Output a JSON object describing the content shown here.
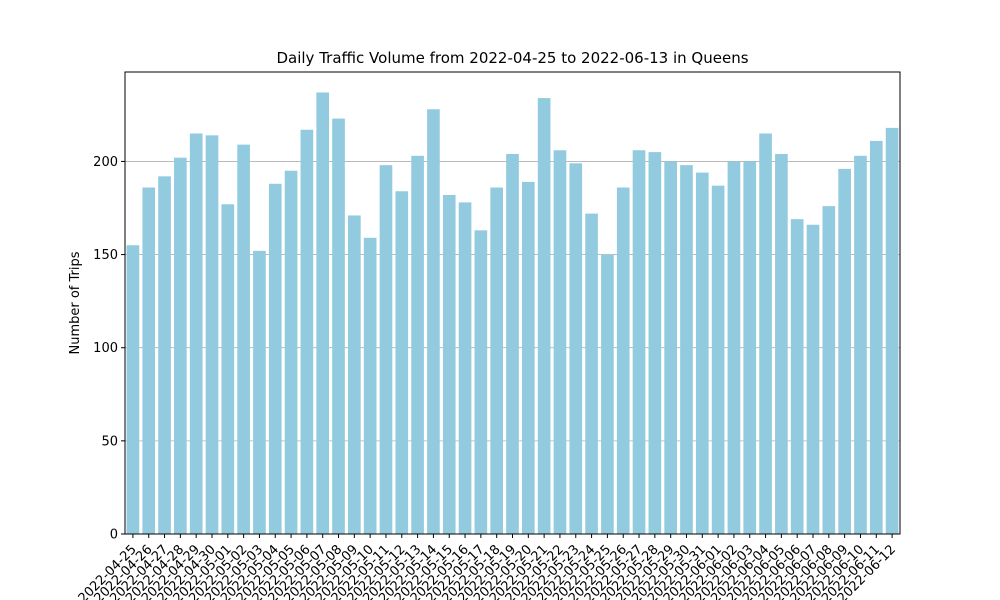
{
  "chart_data": {
    "type": "bar",
    "title": "Daily Traffic Volume from 2022-04-25 to 2022-06-13 in Queens",
    "xlabel": "",
    "ylabel": "Number of Trips",
    "ylim": [
      0,
      248
    ],
    "yticks": [
      0,
      50,
      100,
      150,
      200
    ],
    "grid": "y",
    "bar_color": "#92cbdf",
    "categories": [
      "2022-04-25",
      "2022-04-26",
      "2022-04-27",
      "2022-04-28",
      "2022-04-29",
      "2022-04-30",
      "2022-05-01",
      "2022-05-02",
      "2022-05-03",
      "2022-05-04",
      "2022-05-05",
      "2022-05-06",
      "2022-05-07",
      "2022-05-08",
      "2022-05-09",
      "2022-05-10",
      "2022-05-11",
      "2022-05-12",
      "2022-05-13",
      "2022-05-14",
      "2022-05-15",
      "2022-05-16",
      "2022-05-17",
      "2022-05-18",
      "2022-05-19",
      "2022-05-20",
      "2022-05-21",
      "2022-05-22",
      "2022-05-23",
      "2022-05-24",
      "2022-05-25",
      "2022-05-26",
      "2022-05-27",
      "2022-05-28",
      "2022-05-29",
      "2022-05-30",
      "2022-05-31",
      "2022-06-01",
      "2022-06-02",
      "2022-06-03",
      "2022-06-04",
      "2022-06-05",
      "2022-06-06",
      "2022-06-07",
      "2022-06-08",
      "2022-06-09",
      "2022-06-10",
      "2022-06-11",
      "2022-06-12"
    ],
    "values": [
      155,
      186,
      192,
      202,
      215,
      214,
      177,
      209,
      152,
      188,
      195,
      217,
      237,
      223,
      171,
      159,
      198,
      184,
      203,
      228,
      182,
      178,
      163,
      186,
      204,
      189,
      234,
      206,
      199,
      172,
      150,
      186,
      206,
      205,
      200,
      198,
      194,
      187,
      200,
      200,
      215,
      204,
      169,
      166,
      176,
      196,
      203,
      211,
      218
    ]
  }
}
